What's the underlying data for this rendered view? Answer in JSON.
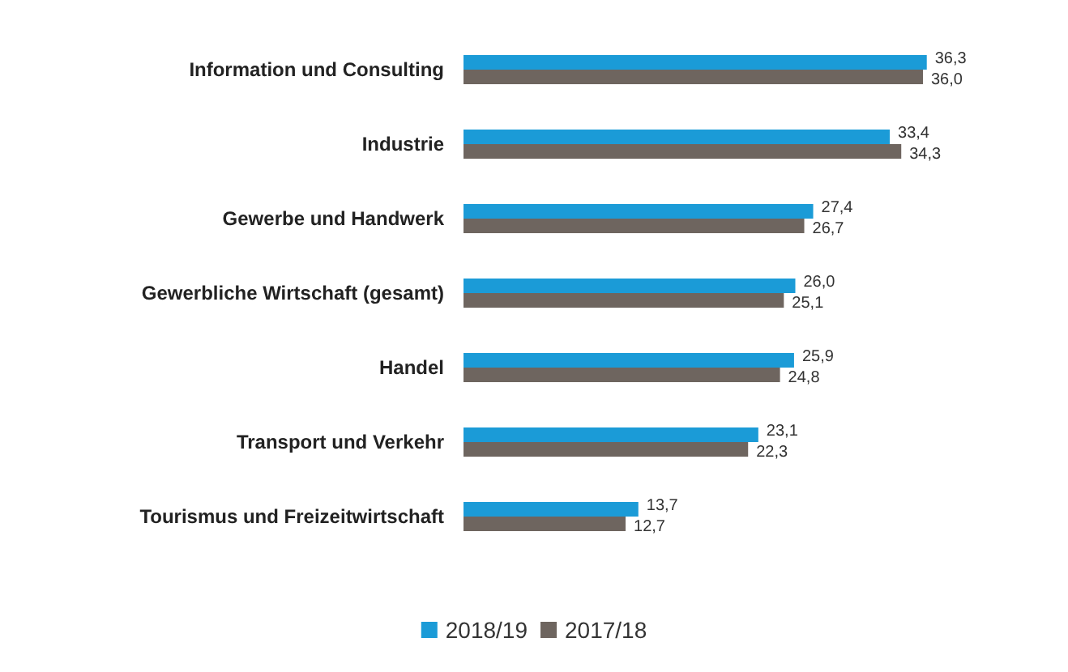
{
  "chart_data": {
    "type": "bar",
    "orientation": "horizontal",
    "categories": [
      "Information und Consulting",
      "Industrie",
      "Gewerbe und Handwerk",
      "Gewerbliche Wirtschaft (gesamt)",
      "Handel",
      "Transport und Verkehr",
      "Tourismus und Freizeitwirtschaft"
    ],
    "series": [
      {
        "name": "2018/19",
        "color": "#1b9bd7",
        "values": [
          36.3,
          33.4,
          27.4,
          26.0,
          25.9,
          23.1,
          13.7
        ],
        "value_labels": [
          "36,3",
          "33,4",
          "27,4",
          "26,0",
          "25,9",
          "23,1",
          "13,7"
        ]
      },
      {
        "name": "2017/18",
        "color": "#6e655f",
        "values": [
          36.0,
          34.3,
          26.7,
          25.1,
          24.8,
          22.3,
          12.7
        ],
        "value_labels": [
          "36,0",
          "34,3",
          "26,7",
          "25,1",
          "24,8",
          "22,3",
          "12,7"
        ]
      }
    ],
    "legend": "bottom",
    "tick_labels": "y"
  }
}
